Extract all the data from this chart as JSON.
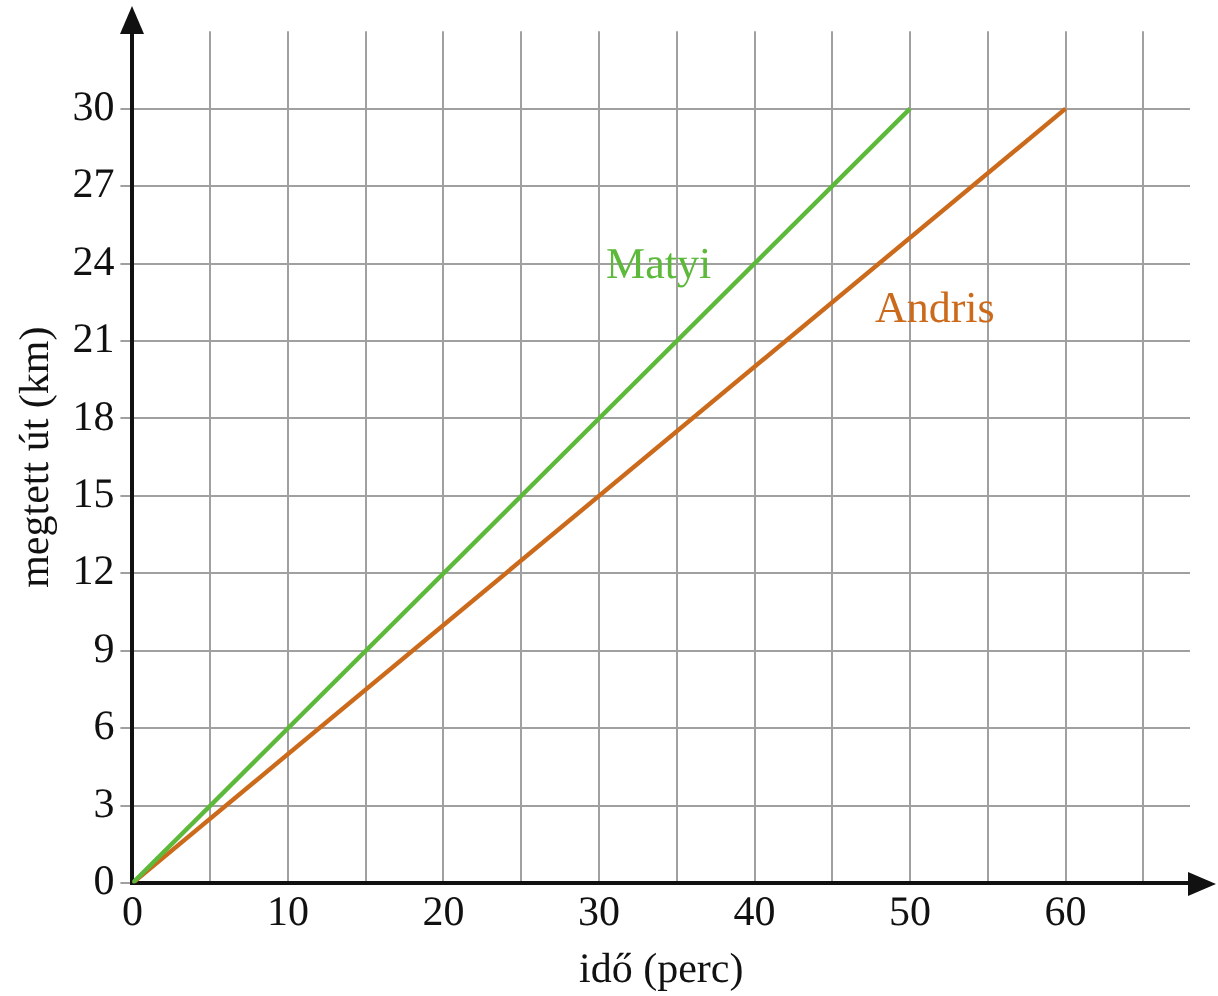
{
  "chart_data": {
    "type": "line",
    "xlabel": "idő (perc)",
    "ylabel": "megtett út (km)",
    "xlim": [
      0,
      68
    ],
    "ylim": [
      0,
      33
    ],
    "xticks": [
      0,
      {
        "value": 5,
        "label": null
      },
      10,
      {
        "value": 15,
        "label": null
      },
      20,
      {
        "value": 25,
        "label": null
      },
      30,
      {
        "value": 35,
        "label": null
      },
      40,
      {
        "value": 45,
        "label": null
      },
      50,
      {
        "value": 55,
        "label": null
      },
      60,
      {
        "value": 65,
        "label": null
      }
    ],
    "yticks": [
      0,
      3,
      6,
      9,
      12,
      15,
      18,
      21,
      24,
      27,
      30
    ],
    "grid": true,
    "legend": false,
    "marker": "none",
    "line_style": "solid",
    "series": [
      {
        "name": "Matyi",
        "color": "#5cb93a",
        "x": [
          0,
          50
        ],
        "values": [
          0,
          30
        ]
      },
      {
        "name": "Andris",
        "color": "#cc6a1c",
        "x": [
          0,
          60
        ],
        "values": [
          0,
          30
        ]
      }
    ]
  }
}
